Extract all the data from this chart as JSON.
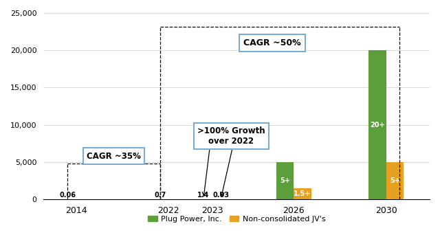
{
  "plug_values": [
    0.06,
    0.7,
    1.4,
    5000,
    20000
  ],
  "jv_values": [
    null,
    null,
    0.03,
    1500,
    5000
  ],
  "plug_labels": [
    "0.06",
    "0.7",
    "1.4",
    "5+",
    "20+"
  ],
  "jv_labels": [
    null,
    null,
    "0.03",
    "1.5+",
    "5+"
  ],
  "bar_width": 0.32,
  "plug_color": "#5B9E3A",
  "jv_color": "#E8A020",
  "background_color": "#FFFFFF",
  "ylim": [
    0,
    25000
  ],
  "yticks": [
    0,
    5000,
    10000,
    15000,
    20000,
    25000
  ],
  "ytick_labels": [
    "0",
    "5,000",
    "10,000",
    "15,000",
    "20,000",
    "25,000"
  ],
  "xtick_labels": [
    "2014",
    "2022",
    "2023",
    "2026",
    "2030"
  ],
  "legend_plug": "Plug Power, Inc.",
  "legend_jv": "Non-consolidated JV's",
  "annotation_cagr35": "CAGR ~35%",
  "annotation_growth": ">100% Growth\nover 2022",
  "annotation_cagr50": "CAGR ~50%",
  "x_positions": [
    0.5,
    2.2,
    3.0,
    4.5,
    6.2
  ],
  "xlim": [
    -0.1,
    7.0
  ],
  "bracket_color": "#000000",
  "box_edge_color": "#7BAAD4"
}
